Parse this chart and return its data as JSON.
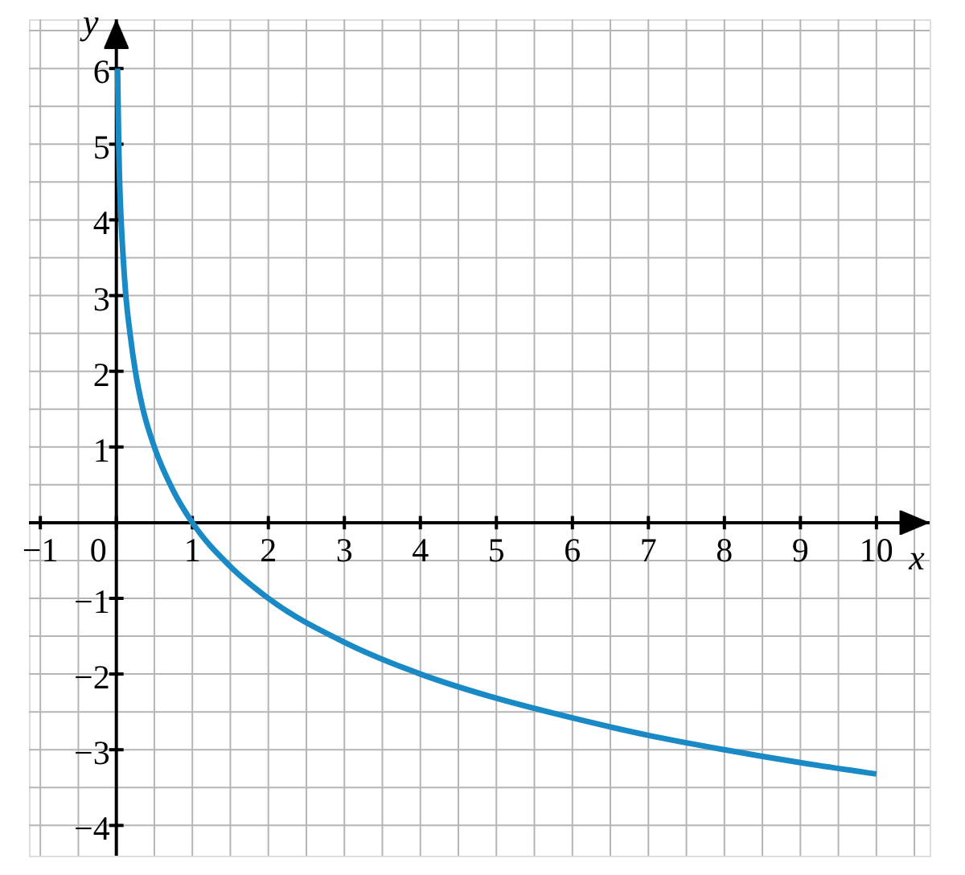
{
  "chart_data": {
    "type": "line",
    "xlabel": "x",
    "ylabel": "y",
    "xlim": [
      -1.15,
      10.7
    ],
    "ylim": [
      -4.4,
      6.65
    ],
    "xticks": [
      {
        "value": -1,
        "label": "−1"
      },
      0,
      1,
      2,
      3,
      4,
      5,
      6,
      7,
      8,
      9,
      10
    ],
    "yticks": [
      {
        "value": -4,
        "label": "−4"
      },
      {
        "value": -3,
        "label": "−3"
      },
      {
        "value": -2,
        "label": "−2"
      },
      {
        "value": -1,
        "label": "−1"
      },
      1,
      2,
      3,
      4,
      5,
      6
    ],
    "grid": true,
    "marker": "none",
    "line_style": "solid",
    "series": [
      {
        "color": "#1a8ac6",
        "x": [
          0.016,
          0.031,
          0.04,
          0.0625,
          0.09,
          0.125,
          0.18,
          0.25,
          0.35,
          0.5,
          0.75,
          1,
          1.5,
          2,
          3,
          4,
          5,
          6,
          7,
          8,
          9,
          10
        ],
        "values": [
          6,
          5,
          4.6,
          4,
          3.5,
          3,
          2.5,
          2,
          1.5,
          1,
          0.42,
          0,
          -0.58,
          -1,
          -1.58,
          -2,
          -2.32,
          -2.58,
          -2.81,
          -3,
          -3.17,
          -3.32
        ]
      }
    ]
  }
}
